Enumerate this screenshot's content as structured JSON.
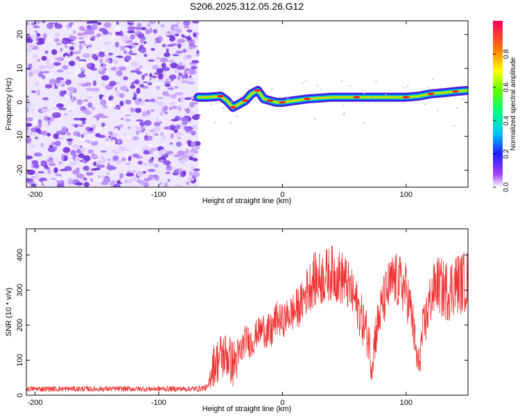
{
  "title": "S206.2025.312.05.26.G12",
  "chart_data": [
    {
      "type": "heatmap",
      "title": "S206.2025.312.05.26.G12",
      "xlabel": "Height of straight line (km)",
      "ylabel": "Frequency (Hz)",
      "xlim": [
        -207,
        150
      ],
      "ylim": [
        -25,
        24
      ],
      "xticks": [
        -200,
        -100,
        0,
        100
      ],
      "yticks": [
        -20,
        -10,
        0,
        10,
        20
      ],
      "noise_region_x": [
        -207,
        -68
      ],
      "ridge": {
        "x": [
          -68,
          -60,
          -50,
          -45,
          -40,
          -35,
          -30,
          -25,
          -20,
          -15,
          -10,
          -5,
          0,
          10,
          20,
          40,
          60,
          80,
          100,
          110,
          120,
          130,
          140,
          150
        ],
        "freq": [
          1.5,
          1.5,
          1.8,
          0.5,
          -1.5,
          -0.5,
          0.5,
          2.5,
          3.5,
          1.0,
          0.5,
          0.0,
          0.0,
          0.5,
          1.0,
          1.5,
          1.5,
          1.5,
          1.5,
          1.8,
          2.5,
          2.8,
          3.2,
          3.5
        ]
      },
      "colorbar": {
        "label": "Normalized spectral amplitude",
        "range": [
          0.0,
          1.0
        ],
        "ticks": [
          "0.0",
          "0.2",
          "0.4",
          "0.6",
          "0.8"
        ]
      }
    },
    {
      "type": "line",
      "xlabel": "Height of straight line (km)",
      "ylabel": "SNR (10 * v/v)",
      "xlim": [
        -207,
        150
      ],
      "ylim": [
        0,
        475
      ],
      "xticks": [
        -200,
        -100,
        0,
        100
      ],
      "yticks": [
        0,
        100,
        200,
        300,
        400
      ],
      "color": "#ee3333",
      "series": [
        {
          "name": "SNR",
          "x": [
            -207,
            -180,
            -150,
            -120,
            -90,
            -70,
            -60,
            -57,
            -50,
            -45,
            -40,
            -35,
            -30,
            -25,
            -20,
            -15,
            -10,
            -5,
            0,
            5,
            10,
            15,
            20,
            25,
            30,
            35,
            40,
            45,
            50,
            55,
            60,
            65,
            70,
            72,
            75,
            80,
            85,
            90,
            95,
            100,
            105,
            108,
            110,
            113,
            120,
            125,
            130,
            135,
            140,
            145,
            150
          ],
          "mean": [
            18,
            18,
            18,
            18,
            18,
            18,
            22,
            80,
            110,
            115,
            90,
            110,
            160,
            150,
            180,
            190,
            170,
            220,
            210,
            230,
            240,
            260,
            300,
            330,
            330,
            340,
            350,
            340,
            330,
            300,
            260,
            210,
            160,
            80,
            170,
            250,
            300,
            330,
            320,
            300,
            220,
            120,
            80,
            170,
            280,
            320,
            300,
            300,
            320,
            320,
            330
          ],
          "spread": [
            8,
            8,
            8,
            8,
            8,
            8,
            10,
            60,
            70,
            70,
            70,
            60,
            40,
            50,
            40,
            50,
            60,
            50,
            50,
            50,
            60,
            60,
            70,
            80,
            80,
            80,
            80,
            80,
            80,
            70,
            70,
            70,
            70,
            50,
            70,
            70,
            80,
            80,
            80,
            80,
            70,
            60,
            50,
            70,
            80,
            80,
            90,
            90,
            90,
            90,
            90
          ]
        }
      ]
    }
  ]
}
